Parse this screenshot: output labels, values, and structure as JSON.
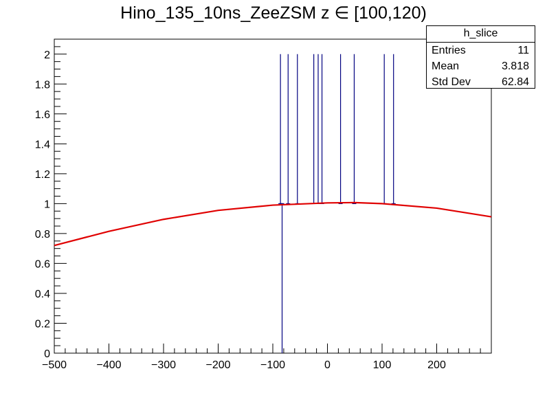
{
  "title": "Hino_135_10ns_ZeeZSM z  ∈ [100,120)",
  "stats": {
    "name": "h_slice",
    "rows": [
      {
        "label": "Entries",
        "value": "11"
      },
      {
        "label": "Mean",
        "value": "3.818"
      },
      {
        "label": "Std Dev",
        "value": "62.84"
      }
    ]
  },
  "colors": {
    "histogram": "#000080",
    "fit": "#e00000"
  },
  "chart_data": {
    "type": "bar",
    "title": "Hino_135_10ns_ZeeZSM z  ∈ [100,120)",
    "xlabel": "",
    "ylabel": "",
    "xlim": [
      -500,
      300
    ],
    "ylim": [
      0,
      2.1
    ],
    "x_ticks": [
      -500,
      -400,
      -300,
      -200,
      -100,
      0,
      100,
      200
    ],
    "y_ticks": [
      0,
      0.2,
      0.4,
      0.6,
      0.8,
      1,
      1.2,
      1.4,
      1.6,
      1.8,
      2
    ],
    "grid": false,
    "series": [
      {
        "type": "bar",
        "x": [
          -86,
          -83,
          -72,
          -55,
          -25,
          -17,
          -10,
          24,
          49,
          104,
          121
        ],
        "values": [
          2,
          1,
          2,
          2,
          2,
          2,
          2,
          2,
          2,
          2,
          2
        ],
        "errors": [
          1,
          1,
          1,
          1,
          1,
          1,
          1,
          1,
          1,
          1,
          1
        ]
      },
      {
        "type": "line",
        "x": [
          -500,
          -400,
          -300,
          -200,
          -100,
          0,
          50,
          100,
          200,
          300
        ],
        "values": [
          0.72,
          0.815,
          0.895,
          0.955,
          0.99,
          1.005,
          1.007,
          1.0,
          0.97,
          0.912
        ]
      }
    ]
  }
}
